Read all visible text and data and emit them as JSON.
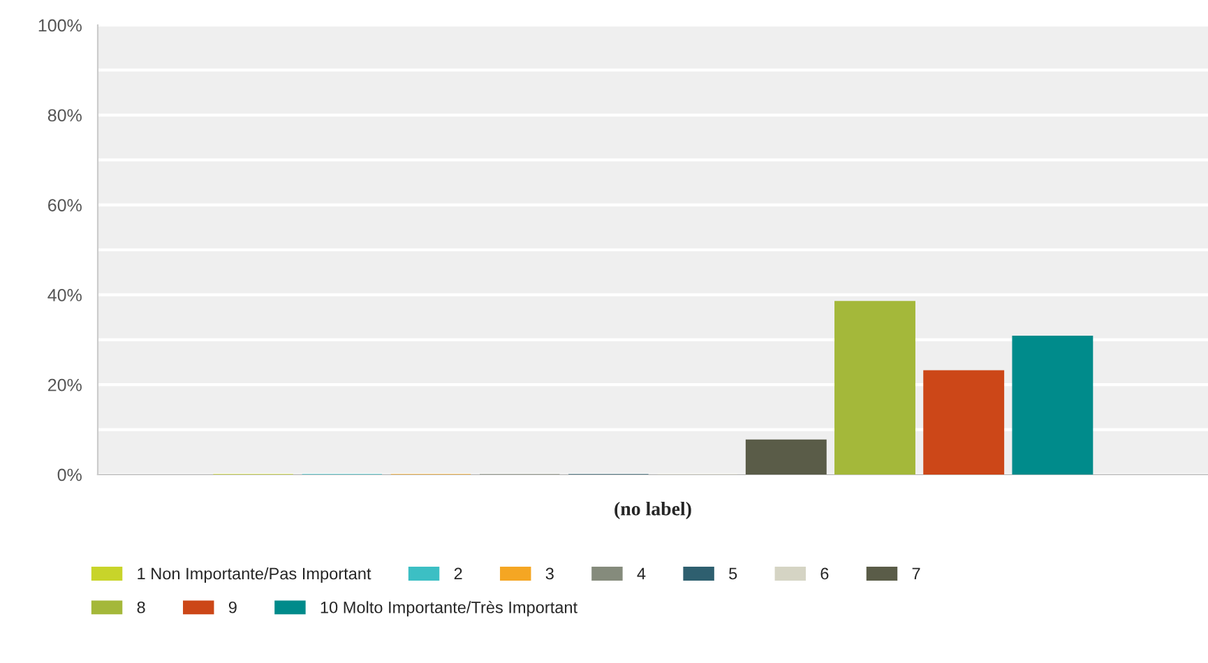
{
  "chart_data": {
    "type": "bar",
    "categories": [
      "(no label)"
    ],
    "series": [
      {
        "name": "1 Non Importante/Pas Important",
        "color": "#c8d42a",
        "values": [
          0
        ]
      },
      {
        "name": "2",
        "color": "#3cbfc4",
        "values": [
          0
        ]
      },
      {
        "name": "3",
        "color": "#f5a623",
        "values": [
          0
        ]
      },
      {
        "name": "4",
        "color": "#858b7c",
        "values": [
          0
        ]
      },
      {
        "name": "5",
        "color": "#2e5f6f",
        "values": [
          0
        ]
      },
      {
        "name": "6",
        "color": "#d5d4c4",
        "values": [
          0
        ]
      },
      {
        "name": "7",
        "color": "#5a5c48",
        "values": [
          7.7
        ]
      },
      {
        "name": "8",
        "color": "#a4b83a",
        "values": [
          38.5
        ]
      },
      {
        "name": "9",
        "color": "#cc4718",
        "values": [
          23.1
        ]
      },
      {
        "name": "10 Molto Importante/Très Important",
        "color": "#008b8b",
        "values": [
          30.8
        ]
      }
    ],
    "ylim": [
      0,
      100
    ],
    "yticks": [
      {
        "value": 0,
        "label": "0%"
      },
      {
        "value": 10,
        "label": null
      },
      {
        "value": 20,
        "label": "20%"
      },
      {
        "value": 30,
        "label": null
      },
      {
        "value": 40,
        "label": "40%"
      },
      {
        "value": 50,
        "label": null
      },
      {
        "value": 60,
        "label": "60%"
      },
      {
        "value": 70,
        "label": null
      },
      {
        "value": 80,
        "label": "80%"
      },
      {
        "value": 90,
        "label": null
      },
      {
        "value": 100,
        "label": "100%"
      }
    ],
    "grid": "y",
    "legend": "bottom"
  }
}
